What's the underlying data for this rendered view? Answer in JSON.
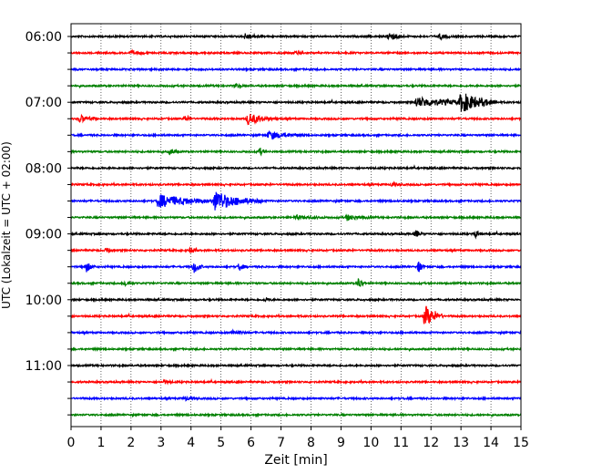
{
  "chart_data": {
    "type": "line",
    "title": "",
    "xlabel": "Zeit  [min]",
    "ylabel": "UTC (Lokalzeit = UTC + 02:00)",
    "xlim": [
      0,
      15
    ],
    "xticks": [
      0,
      1,
      2,
      3,
      4,
      5,
      6,
      7,
      8,
      9,
      10,
      11,
      12,
      13,
      14,
      15
    ],
    "grid_x": true,
    "trace_interval_min": 15,
    "ytick_labels": [
      "06:00",
      "07:00",
      "08:00",
      "09:00",
      "10:00",
      "11:00"
    ],
    "colors": [
      "#000000",
      "#ff0000",
      "#0000ff",
      "#008000"
    ],
    "traces": [
      {
        "start": "06:00",
        "color": "#000000",
        "events": [
          {
            "t": 5.8,
            "amp": 3,
            "dur": 0.6
          },
          {
            "t": 10.6,
            "amp": 5,
            "dur": 0.5
          },
          {
            "t": 12.3,
            "amp": 3,
            "dur": 0.4
          }
        ]
      },
      {
        "start": "06:15",
        "color": "#ff0000",
        "events": [
          {
            "t": 2.0,
            "amp": 2,
            "dur": 0.5
          },
          {
            "t": 7.5,
            "amp": 2,
            "dur": 0.4
          }
        ]
      },
      {
        "start": "06:30",
        "color": "#0000ff",
        "events": []
      },
      {
        "start": "06:45",
        "color": "#008000",
        "events": [
          {
            "t": 5.5,
            "amp": 2,
            "dur": 0.3
          }
        ]
      },
      {
        "start": "07:00",
        "color": "#000000",
        "events": [
          {
            "t": 11.5,
            "amp": 5,
            "dur": 2.5
          },
          {
            "t": 13.0,
            "amp": 10,
            "dur": 1.2
          }
        ]
      },
      {
        "start": "07:15",
        "color": "#ff0000",
        "events": [
          {
            "t": 0.3,
            "amp": 4,
            "dur": 0.6
          },
          {
            "t": 3.8,
            "amp": 3,
            "dur": 0.3
          },
          {
            "t": 5.9,
            "amp": 6,
            "dur": 1.0
          }
        ]
      },
      {
        "start": "07:30",
        "color": "#0000ff",
        "events": [
          {
            "t": 6.6,
            "amp": 4,
            "dur": 1.2
          }
        ]
      },
      {
        "start": "07:45",
        "color": "#008000",
        "events": [
          {
            "t": 3.3,
            "amp": 3,
            "dur": 0.3
          },
          {
            "t": 6.3,
            "amp": 4,
            "dur": 0.2
          }
        ]
      },
      {
        "start": "08:00",
        "color": "#000000",
        "events": []
      },
      {
        "start": "08:15",
        "color": "#ff0000",
        "events": [
          {
            "t": 10.7,
            "amp": 2,
            "dur": 0.4
          }
        ]
      },
      {
        "start": "08:30",
        "color": "#0000ff",
        "events": [
          {
            "t": 2.9,
            "amp": 7,
            "dur": 2.2
          },
          {
            "t": 4.8,
            "amp": 10,
            "dur": 1.6
          }
        ]
      },
      {
        "start": "08:45",
        "color": "#008000",
        "events": [
          {
            "t": 7.5,
            "amp": 2,
            "dur": 1.0
          },
          {
            "t": 9.2,
            "amp": 3,
            "dur": 0.8
          }
        ]
      },
      {
        "start": "09:00",
        "color": "#000000",
        "events": [
          {
            "t": 11.5,
            "amp": 4,
            "dur": 0.2
          },
          {
            "t": 13.5,
            "amp": 4,
            "dur": 0.2
          }
        ]
      },
      {
        "start": "09:15",
        "color": "#ff0000",
        "events": [
          {
            "t": 1.2,
            "amp": 4,
            "dur": 0.2
          },
          {
            "t": 4.0,
            "amp": 4,
            "dur": 0.2
          }
        ]
      },
      {
        "start": "09:30",
        "color": "#0000ff",
        "events": [
          {
            "t": 0.5,
            "amp": 6,
            "dur": 0.3
          },
          {
            "t": 4.1,
            "amp": 7,
            "dur": 0.3
          },
          {
            "t": 5.6,
            "amp": 4,
            "dur": 0.3
          },
          {
            "t": 11.6,
            "amp": 7,
            "dur": 0.2
          }
        ]
      },
      {
        "start": "09:45",
        "color": "#008000",
        "events": [
          {
            "t": 1.8,
            "amp": 3,
            "dur": 0.3
          },
          {
            "t": 9.6,
            "amp": 7,
            "dur": 0.2
          }
        ]
      },
      {
        "start": "10:00",
        "color": "#000000",
        "events": [
          {
            "t": 6.5,
            "amp": 2,
            "dur": 0.2
          }
        ]
      },
      {
        "start": "10:15",
        "color": "#ff0000",
        "events": [
          {
            "t": 11.8,
            "amp": 12,
            "dur": 0.6
          }
        ]
      },
      {
        "start": "10:30",
        "color": "#0000ff",
        "events": [
          {
            "t": 5.4,
            "amp": 3,
            "dur": 0.5
          }
        ]
      },
      {
        "start": "10:45",
        "color": "#008000",
        "events": []
      },
      {
        "start": "11:00",
        "color": "#000000",
        "events": []
      },
      {
        "start": "11:15",
        "color": "#ff0000",
        "events": [
          {
            "t": 3.1,
            "amp": 2,
            "dur": 0.3
          }
        ]
      },
      {
        "start": "11:30",
        "color": "#0000ff",
        "events": [
          {
            "t": 3.8,
            "amp": 2,
            "dur": 0.5
          }
        ]
      },
      {
        "start": "11:45",
        "color": "#008000",
        "events": []
      }
    ]
  }
}
